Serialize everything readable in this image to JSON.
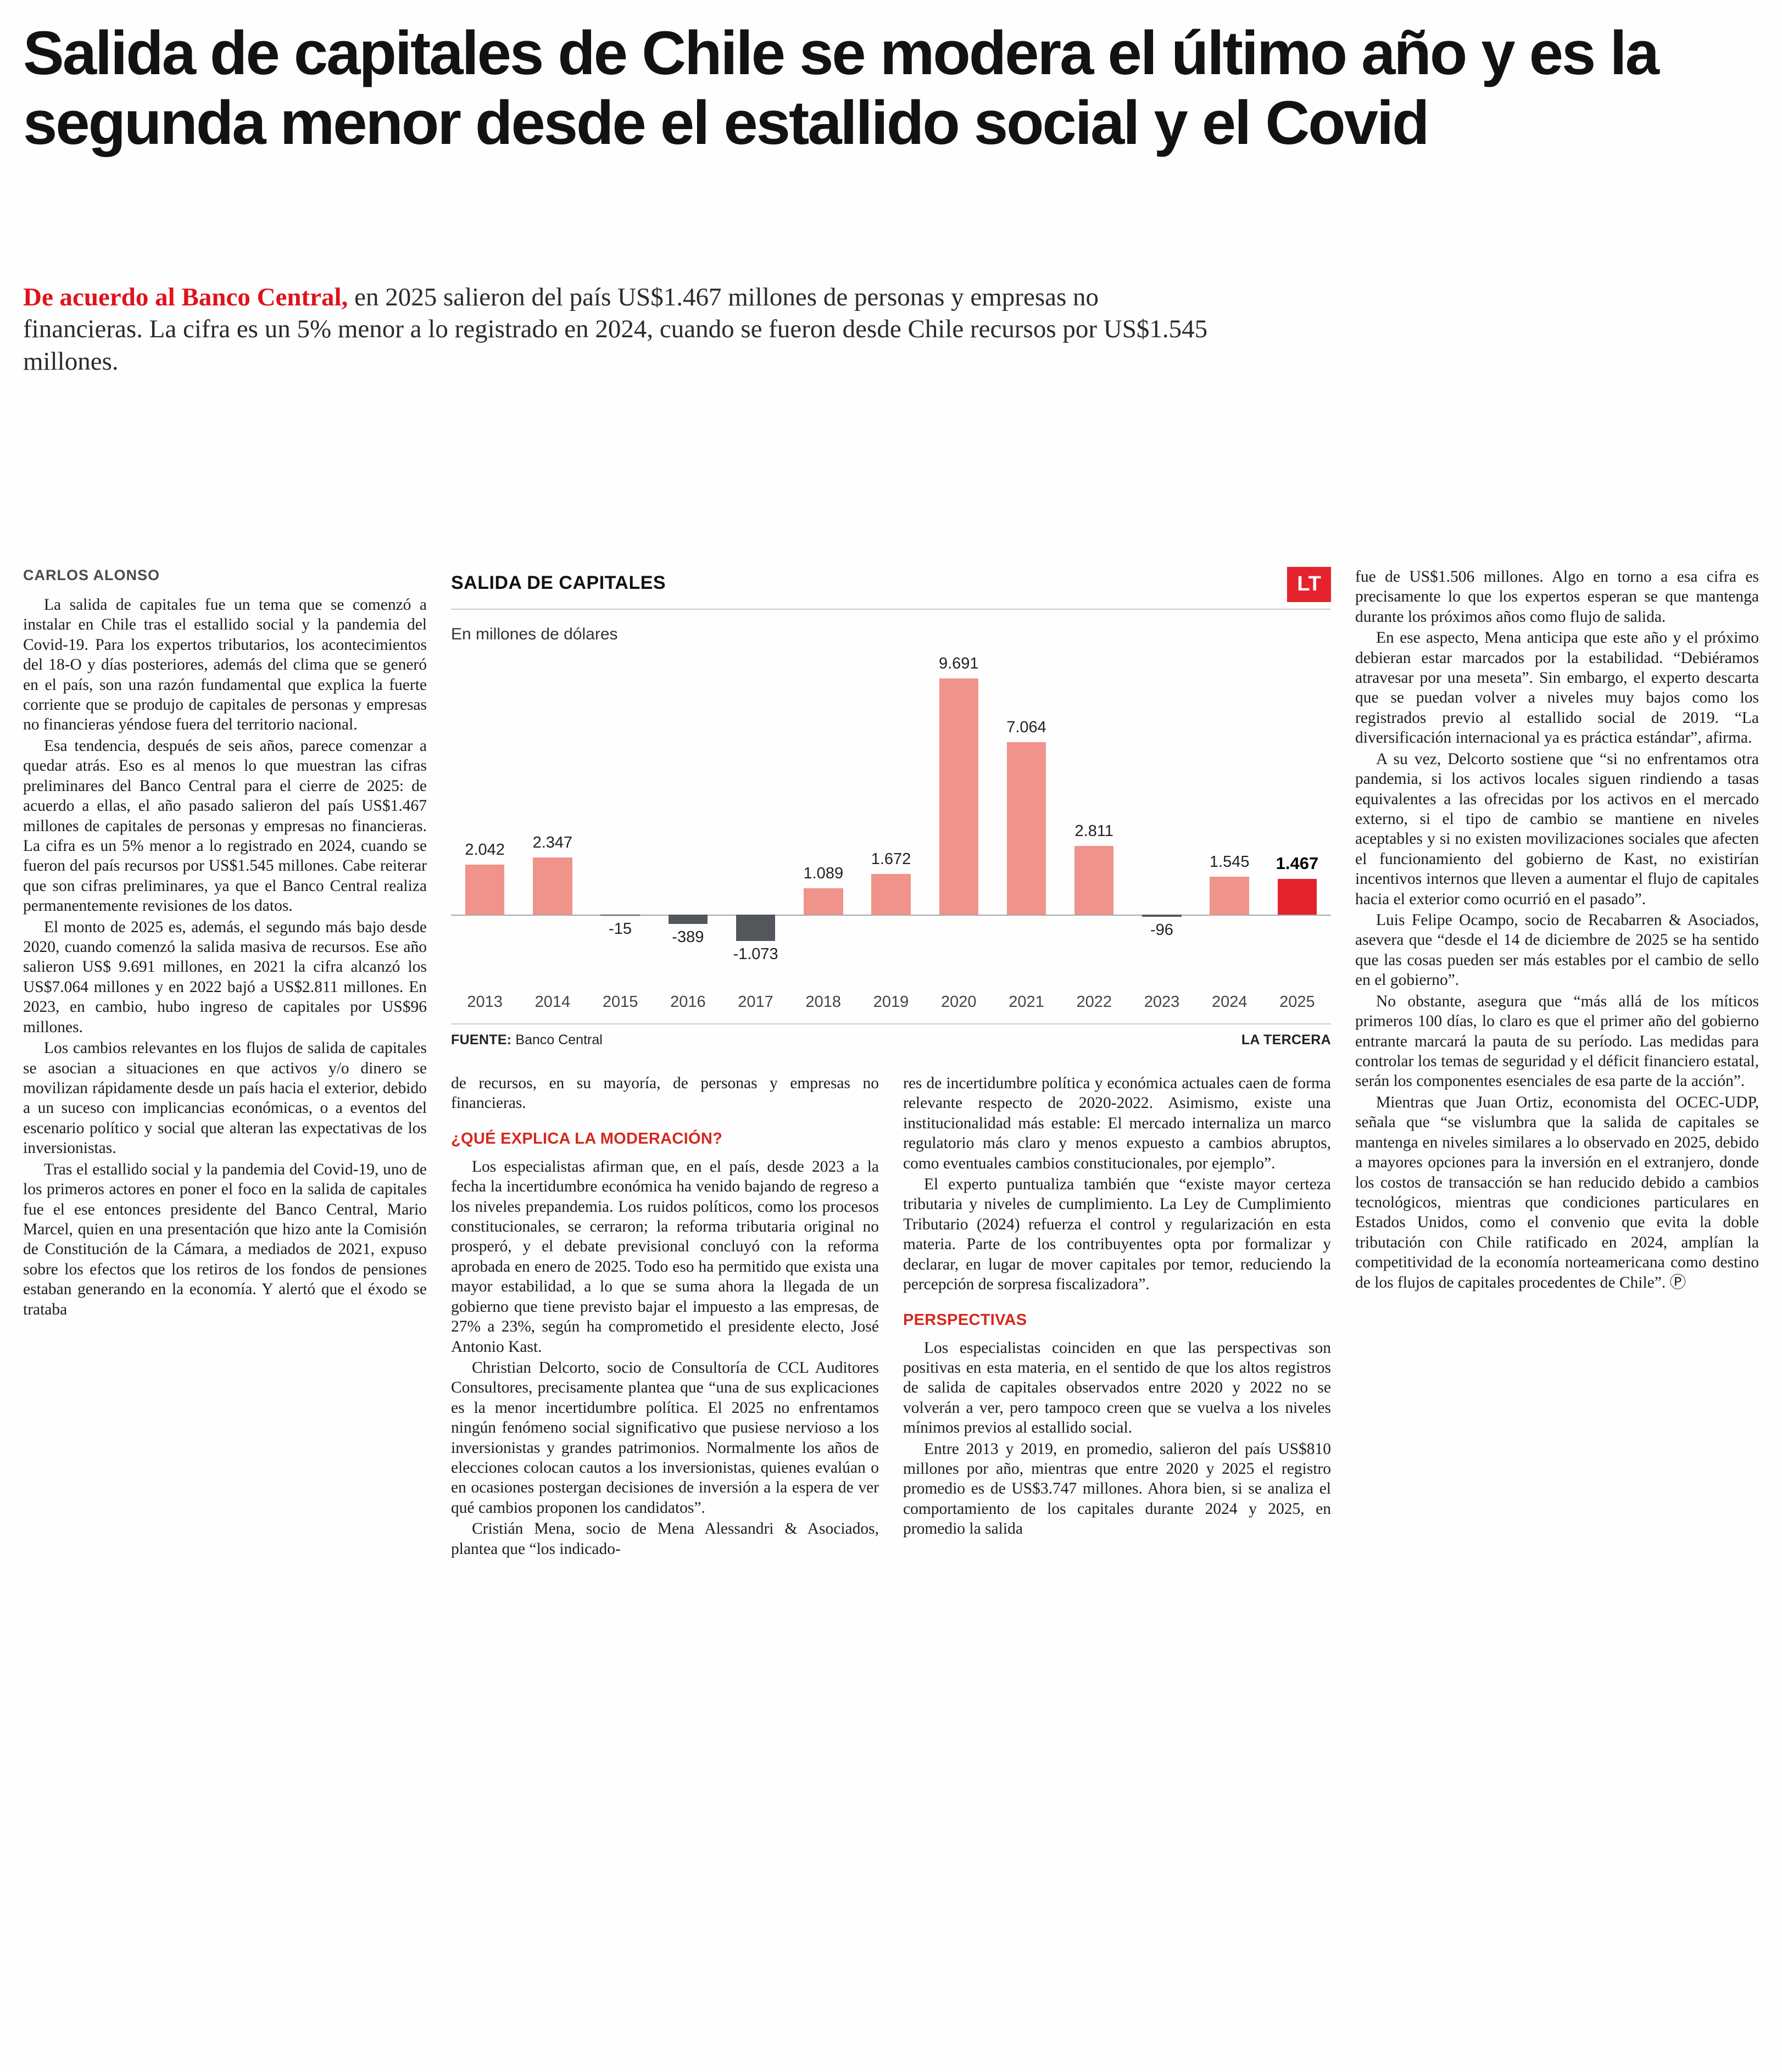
{
  "article": {
    "headline": "Salida de capitales de Chile se modera el último año y es la segunda menor desde el estallido social y el Covid",
    "lead_highlight": "De acuerdo al Banco Central,",
    "lead_rest": " en 2025 salieron del país US$1.467 millones de personas y empresas no financieras. La cifra es un 5% menor a lo registrado en 2024, cuando se fueron desde Chile recursos por US$1.545 millones.",
    "byline": "CARLOS ALONSO",
    "accent_red": "#e0131b",
    "col1_paragraphs": [
      "La salida de capitales fue un tema que se comenzó a instalar en Chile tras el estallido social y la pandemia del Covid-19. Para los expertos tributarios, los acontecimientos del 18-O y días posteriores, además del clima que se generó en el país, son una razón fundamental que explica la fuerte corriente que se produjo de capitales de personas y empresas no financieras yéndose fuera del territorio nacional.",
      "Esa tendencia, después de seis años, parece comenzar a quedar atrás. Eso es al menos lo que muestran las cifras preliminares del Banco Central para el cierre de 2025: de acuerdo a ellas, el año pasado salieron del país US$1.467 millones de capitales de personas y empresas no financieras. La cifra es un 5% menor a lo registrado en 2024, cuando se fueron del país recursos por US$1.545 millones. Cabe reiterar que son cifras preliminares, ya que el Banco Central realiza permanentemente revisiones de los datos.",
      "El monto de 2025 es, además, el segundo más bajo desde 2020, cuando comenzó la salida masiva de recursos. Ese año salieron US$ 9.691 millones, en 2021 la cifra alcanzó los US$7.064 millones y en 2022 bajó a US$2.811 millones. En 2023, en cambio, hubo ingreso de capitales por US$96 millones.",
      "Los cambios relevantes en los flujos de salida de capitales se asocian a situaciones en que activos y/o dinero se movilizan rápidamente desde un país hacia el exterior, debido a un suceso con implicancias económicas, o a eventos del escenario político y social que alteran las expectativas de los inversionistas.",
      "Tras el estallido social y la pandemia del Covid-19, uno de los primeros actores en poner el foco en la salida de capitales fue el ese entonces presidente del Banco Central, Mario Marcel, quien en una presentación que hizo ante la Comisión de Constitución de la Cámara, a mediados de 2021, expuso sobre los efectos que los retiros de los fondos de pensiones estaban generando en la economía. Y alertó que el éxodo se trataba"
    ],
    "col2_continuation": "de recursos, en su mayoría, de personas y empresas no financieras.",
    "col2_heading": "¿QUÉ EXPLICA LA MODERACIÓN?",
    "col2_paragraphs": [
      "Los especialistas afirman que, en el país, desde 2023 a la fecha la incertidumbre económica ha venido bajando de regreso a los niveles prepandemia. Los ruidos políticos, como los procesos constitucionales, se cerraron; la reforma tributaria original no prosperó, y el debate previsional concluyó con la reforma aprobada en enero de 2025. Todo eso ha permitido que exista una mayor estabilidad, a lo que se suma ahora la llegada de un gobierno que tiene previsto bajar el impuesto a las empresas, de 27% a 23%, según ha comprometido el presidente electo, José Antonio Kast.",
      "Christian Delcorto, socio de Consultoría de CCL Auditores Consultores, precisamente plantea que “una de sus explicaciones es la menor incertidumbre política. El 2025 no enfrentamos ningún fenómeno social significativo que pusiese nervioso a los inversionistas y grandes patrimonios. Normalmente los años de elecciones colocan cautos a los inversionistas, quienes evalúan o en ocasiones postergan decisiones de inversión a la espera de ver qué cambios proponen los candidatos”.",
      "Cristián Mena, socio de Mena Alessandri & Asociados, plantea que “los indicado-"
    ],
    "col3_continuation": "res de incertidumbre política y económica actuales caen de forma relevante respecto de 2020-2022. Asimismo, existe una institucionalidad más estable: El mercado internaliza un marco regulatorio más claro y menos expuesto a cambios abruptos, como eventuales cambios constitucionales, por ejemplo”.",
    "col3_paragraphs_top": [
      "El experto puntualiza también que “existe mayor certeza tributaria y niveles de cumplimiento. La Ley de Cumplimiento Tributario (2024) refuerza el control y regularización en esta materia. Parte de los contribuyentes opta por formalizar y declarar, en lugar de mover capitales por temor, reduciendo la percepción de sorpresa fiscalizadora”."
    ],
    "col3_heading": "PERSPECTIVAS",
    "col3_paragraphs": [
      "Los especialistas coinciden en que las perspectivas son positivas en esta materia, en el sentido de que los altos registros de salida de capitales observados entre 2020 y 2022 no se volverán a ver, pero tampoco creen que se vuelva a los niveles mínimos previos al estallido social.",
      "Entre 2013 y 2019, en promedio, salieron del país US$810 millones por año, mientras que entre 2020 y 2025 el registro promedio es de US$3.747 millones. Ahora bien, si se analiza el comportamiento de los capitales durante 2024 y 2025, en promedio la salida"
    ],
    "col4_continuation": "fue de US$1.506 millones. Algo en torno a esa cifra es precisamente lo que los expertos esperan se que mantenga durante los próximos años como flujo de salida.",
    "col4_paragraphs": [
      "En ese aspecto, Mena anticipa que este año y el próximo debieran estar marcados por la estabilidad. “Debiéramos atravesar por una meseta”. Sin embargo, el experto descarta que se puedan volver a niveles muy bajos como los registrados previo al estallido social de 2019. “La diversificación internacional ya es práctica estándar”, afirma.",
      "A su vez, Delcorto sostiene que “si no enfrentamos otra pandemia, si los activos locales siguen rindiendo a tasas equivalentes a las ofrecidas por los activos en el mercado externo, si el tipo de cambio se mantiene en niveles aceptables y si no existen movilizaciones sociales que afecten el funcionamiento del gobierno de Kast, no existirían incentivos internos que lleven a aumentar el flujo de capitales hacia el exterior como ocurrió en el pasado”.",
      "Luis Felipe Ocampo, socio de Recabarren & Asociados, asevera que “desde el 14 de diciembre de 2025 se ha sentido que las cosas pueden ser más estables por el cambio de sello en el gobierno”.",
      "No obstante, asegura que “más allá de los míticos primeros 100 días, lo claro es que el primer año del gobierno entrante marcará la pauta de su período. Las medidas para controlar los temas de seguridad y el déficit financiero estatal, serán los componentes esenciales de esa parte de la acción”.",
      "Mientras que Juan Ortiz, economista del OCEC-UDP, señala que “se vislumbra que la salida de capitales se mantenga en niveles similares a lo observado en 2025, debido a mayores opciones para la inversión en el extranjero, donde los costos de transacción se han reducido debido a cambios tecnológicos, mientras que condiciones particulares en Estados Unidos, como el convenio que evita la doble tributación con Chile ratificado en 2024, amplían la competitividad de la economía norteamericana como destino de los flujos de capitales procedentes de Chile”. Ⓟ"
    ]
  },
  "chart_data": {
    "type": "bar",
    "title": "SALIDA DE CAPITALES",
    "subtitle": "En millones de dólares",
    "logo": "LT",
    "categories": [
      "2013",
      "2014",
      "2015",
      "2016",
      "2017",
      "2018",
      "2019",
      "2020",
      "2021",
      "2022",
      "2023",
      "2024",
      "2025"
    ],
    "values": [
      2042,
      2347,
      -15,
      -389,
      -1073,
      1089,
      1672,
      9691,
      7064,
      2811,
      -96,
      1545,
      1467
    ],
    "labels": [
      "2.042",
      "2.347",
      "-15",
      "-389",
      "-1.073",
      "1.089",
      "1.672",
      "9.691",
      "7.064",
      "2.811",
      "-96",
      "1.545",
      "1.467"
    ],
    "highlight_index": 12,
    "xlabel": "",
    "ylabel": "En millones de dólares",
    "ylim": [
      -1500,
      10000
    ],
    "grid": false,
    "legend": false,
    "source_label": "FUENTE:",
    "source_value": "Banco Central",
    "credit": "LA TERCERA",
    "colors": {
      "positive": "#f0938a",
      "negative": "#53575c",
      "highlight": "#e5232e"
    }
  }
}
